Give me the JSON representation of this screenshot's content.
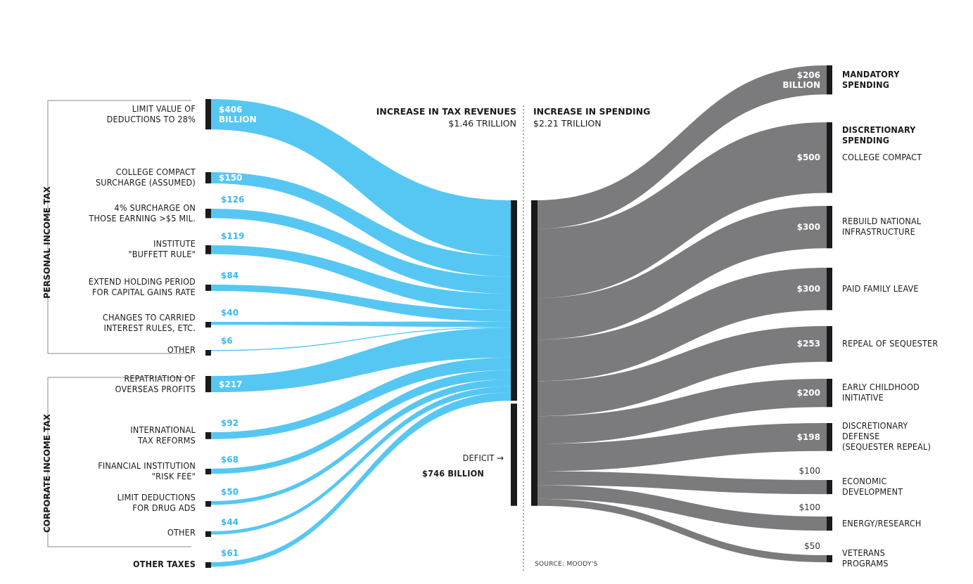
{
  "headers": {
    "revenue_title": "INCREASE IN TAX REVENUES",
    "revenue_total": "$1.46 TRILLION",
    "spending_title": "INCREASE IN SPENDING",
    "spending_total": "$2.21 TRILLION"
  },
  "groups": {
    "personal": "PERSONAL INCOME TAX",
    "corporate": "CORPORATE INCOME TAX"
  },
  "revenue_items": [
    {
      "label": [
        "LIMIT VALUE OF",
        "DEDUCTIONS TO 28%"
      ],
      "value": 406,
      "value_label": [
        "$406",
        "BILLION"
      ]
    },
    {
      "label": [
        "COLLEGE COMPACT",
        "SURCHARGE (ASSUMED)"
      ],
      "value": 150,
      "value_label": [
        "$150"
      ]
    },
    {
      "label": [
        "4% SURCHARGE ON",
        "THOSE EARNING >$5 MIL."
      ],
      "value": 126,
      "value_label": [
        "$126"
      ]
    },
    {
      "label": [
        "INSTITUTE",
        "\"BUFFETT RULE\""
      ],
      "value": 119,
      "value_label": [
        "$119"
      ]
    },
    {
      "label": [
        "EXTEND HOLDING PERIOD",
        "FOR CAPITAL GAINS RATE"
      ],
      "value": 84,
      "value_label": [
        "$84"
      ]
    },
    {
      "label": [
        "CHANGES TO CARRIED",
        "INTEREST RULES, ETC."
      ],
      "value": 40,
      "value_label": [
        "$40"
      ]
    },
    {
      "label": [
        "OTHER"
      ],
      "value": 6,
      "value_label": [
        "$6"
      ]
    },
    {
      "label": [
        "REPATRIATION OF",
        "OVERSEAS PROFITS"
      ],
      "value": 217,
      "value_label": [
        "$217"
      ]
    },
    {
      "label": [
        "INTERNATIONAL",
        "TAX REFORMS"
      ],
      "value": 92,
      "value_label": [
        "$92"
      ]
    },
    {
      "label": [
        "FINANCIAL INSTITUTION",
        "\"RISK FEE\""
      ],
      "value": 68,
      "value_label": [
        "$68"
      ]
    },
    {
      "label": [
        "LIMIT DEDUCTIONS",
        "FOR DRUG ADS"
      ],
      "value": 50,
      "value_label": [
        "$50"
      ]
    },
    {
      "label": [
        "OTHER"
      ],
      "value": 44,
      "value_label": [
        "$44"
      ]
    },
    {
      "label": [
        "OTHER TAXES"
      ],
      "value": 61,
      "value_label": [
        "$61"
      ],
      "bold": true
    }
  ],
  "deficit": {
    "label": "DEFICIT →",
    "value_text": "$746 BILLION",
    "value": 746
  },
  "spending_items": [
    {
      "label": [
        "MANDATORY",
        "SPENDING"
      ],
      "value": 206,
      "value_label": [
        "$206",
        "BILLION"
      ],
      "bold": true
    },
    {
      "heading": [
        "DISCRETIONARY",
        "SPENDING"
      ],
      "label": [
        "COLLEGE COMPACT"
      ],
      "value": 500,
      "value_label": [
        "$500"
      ]
    },
    {
      "label": [
        "REBUILD NATIONAL",
        "INFRASTRUCTURE"
      ],
      "value": 300,
      "value_label": [
        "$300"
      ]
    },
    {
      "label": [
        "PAID FAMILY LEAVE"
      ],
      "value": 300,
      "value_label": [
        "$300"
      ]
    },
    {
      "label": [
        "REPEAL OF SEQUESTER"
      ],
      "value": 253,
      "value_label": [
        "$253"
      ]
    },
    {
      "label": [
        "EARLY CHILDHOOD",
        "INITIATIVE"
      ],
      "value": 200,
      "value_label": [
        "$200"
      ]
    },
    {
      "label": [
        "DISCRETIONARY",
        "DEFENSE",
        "(SEQUESTER REPEAL)"
      ],
      "value": 198,
      "value_label": [
        "$198"
      ]
    },
    {
      "label": [
        "ECONOMIC",
        "DEVELOPMENT"
      ],
      "value": 100,
      "value_label": [
        "$100"
      ]
    },
    {
      "label": [
        "ENERGY/RESEARCH"
      ],
      "value": 100,
      "value_label": [
        "$100"
      ]
    },
    {
      "label": [
        "VETERANS",
        "PROGRAMS"
      ],
      "value": 50,
      "value_label": [
        "$50"
      ]
    }
  ],
  "source": "SOURCE: MOODY'S",
  "colors": {
    "revenue": "#4dc4f2",
    "spending": "#7b7b7d",
    "bar": "#1a1a1a",
    "outside_value": "#3bb8ec"
  }
}
